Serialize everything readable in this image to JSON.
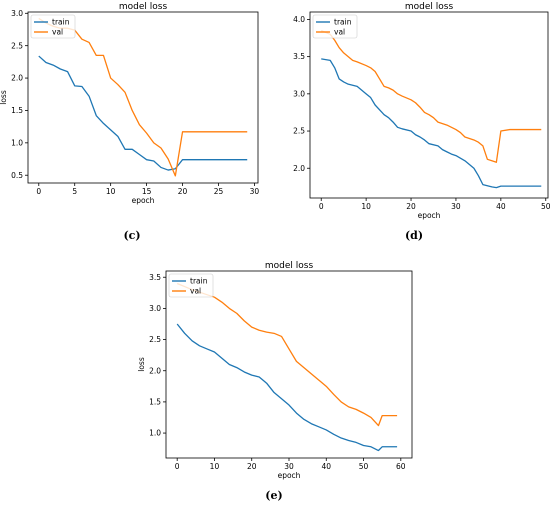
{
  "colors": {
    "train": "#1f77b4",
    "val": "#ff7f0e"
  },
  "chart_data": [
    {
      "type": "line",
      "title": "model loss",
      "xlabel": "epoch",
      "ylabel": "loss",
      "caption": "(c)",
      "xlim": [
        -1.5,
        30.5
      ],
      "ylim": [
        0.38,
        3.02
      ],
      "xticks": [
        0,
        5,
        10,
        15,
        20,
        25,
        30
      ],
      "yticks": [
        0.5,
        1.0,
        1.5,
        2.0,
        2.5,
        3.0
      ],
      "ytick_labels": [
        "0.5",
        "1.0",
        "1.5",
        "2.0",
        "2.5",
        "3.0"
      ],
      "legend": "upper-left",
      "series": [
        {
          "name": "train",
          "color": "#1f77b4",
          "x": [
            0,
            1,
            2,
            3,
            4,
            5,
            6,
            7,
            8,
            9,
            10,
            11,
            12,
            13,
            14,
            15,
            16,
            17,
            18,
            19,
            20,
            21,
            22,
            23,
            24,
            25,
            26,
            27,
            28,
            29
          ],
          "values": [
            2.34,
            2.24,
            2.2,
            2.14,
            2.1,
            1.88,
            1.87,
            1.72,
            1.42,
            1.3,
            1.2,
            1.1,
            0.9,
            0.9,
            0.82,
            0.74,
            0.72,
            0.62,
            0.58,
            0.6,
            0.74,
            0.74,
            0.74,
            0.74,
            0.74,
            0.74,
            0.74,
            0.74,
            0.74,
            0.74
          ]
        },
        {
          "name": "val",
          "color": "#ff7f0e",
          "x": [
            0,
            1,
            2,
            3,
            4,
            5,
            6,
            7,
            8,
            9,
            10,
            11,
            12,
            13,
            14,
            15,
            16,
            17,
            18,
            19,
            20,
            21,
            22,
            23,
            24,
            25,
            26,
            27,
            28,
            29
          ],
          "values": [
            2.92,
            2.85,
            2.8,
            2.77,
            2.77,
            2.74,
            2.6,
            2.55,
            2.35,
            2.35,
            2.0,
            1.9,
            1.78,
            1.5,
            1.28,
            1.15,
            1.0,
            0.92,
            0.75,
            0.49,
            1.17,
            1.17,
            1.17,
            1.17,
            1.17,
            1.17,
            1.17,
            1.17,
            1.17,
            1.17
          ]
        }
      ]
    },
    {
      "type": "line",
      "title": "model loss",
      "xlabel": "epoch",
      "ylabel": "",
      "caption": "(d)",
      "xlim": [
        -2.5,
        50.5
      ],
      "ylim": [
        1.6,
        4.1
      ],
      "xticks": [
        0,
        10,
        20,
        30,
        40,
        50
      ],
      "yticks": [
        2.0,
        2.5,
        3.0,
        3.5,
        4.0
      ],
      "ytick_labels": [
        "2.0",
        "2.5",
        "3.0",
        "3.5",
        "4.0"
      ],
      "legend": "upper-left",
      "series": [
        {
          "name": "train",
          "color": "#1f77b4",
          "x": [
            0,
            2,
            3,
            4,
            5,
            6,
            8,
            9,
            10,
            11,
            12,
            14,
            15,
            16,
            17,
            18,
            20,
            21,
            22,
            23,
            24,
            26,
            27,
            28,
            29,
            30,
            32,
            34,
            35,
            36,
            38,
            39,
            40,
            42,
            44,
            46,
            48,
            49
          ],
          "values": [
            3.47,
            3.45,
            3.35,
            3.2,
            3.16,
            3.13,
            3.1,
            3.05,
            3.0,
            2.95,
            2.85,
            2.72,
            2.68,
            2.62,
            2.55,
            2.53,
            2.5,
            2.45,
            2.42,
            2.38,
            2.33,
            2.3,
            2.25,
            2.22,
            2.19,
            2.17,
            2.1,
            2.0,
            1.9,
            1.78,
            1.75,
            1.74,
            1.76,
            1.76,
            1.76,
            1.76,
            1.76,
            1.76
          ]
        },
        {
          "name": "val",
          "color": "#ff7f0e",
          "x": [
            0,
            2,
            3,
            4,
            5,
            6,
            7,
            8,
            10,
            11,
            12,
            13,
            14,
            15,
            16,
            17,
            18,
            20,
            21,
            22,
            23,
            24,
            25,
            26,
            28,
            29,
            30,
            31,
            32,
            33,
            34,
            35,
            36,
            37,
            38,
            39,
            40,
            42,
            44,
            46,
            48,
            49
          ],
          "values": [
            3.85,
            3.8,
            3.72,
            3.62,
            3.55,
            3.5,
            3.45,
            3.43,
            3.38,
            3.35,
            3.3,
            3.2,
            3.1,
            3.08,
            3.05,
            3.0,
            2.97,
            2.92,
            2.88,
            2.82,
            2.75,
            2.72,
            2.68,
            2.62,
            2.58,
            2.55,
            2.52,
            2.48,
            2.42,
            2.4,
            2.38,
            2.35,
            2.3,
            2.12,
            2.1,
            2.08,
            2.5,
            2.52,
            2.52,
            2.52,
            2.52,
            2.52
          ]
        }
      ]
    },
    {
      "type": "line",
      "title": "model loss",
      "xlabel": "epoch",
      "ylabel": "loss",
      "caption": "(e)",
      "xlim": [
        -3,
        63
      ],
      "ylim": [
        0.6,
        3.6
      ],
      "xticks": [
        0,
        10,
        20,
        30,
        40,
        50,
        60
      ],
      "yticks": [
        1.0,
        1.5,
        2.0,
        2.5,
        3.0,
        3.5
      ],
      "ytick_labels": [
        "1.0",
        "1.5",
        "2.0",
        "2.5",
        "3.0",
        "3.5"
      ],
      "legend": "upper-left",
      "series": [
        {
          "name": "train",
          "color": "#1f77b4",
          "x": [
            0,
            2,
            4,
            6,
            8,
            10,
            12,
            14,
            16,
            18,
            20,
            22,
            24,
            26,
            28,
            30,
            32,
            34,
            36,
            38,
            40,
            42,
            44,
            46,
            48,
            50,
            52,
            54,
            55,
            57,
            59
          ],
          "values": [
            2.75,
            2.6,
            2.48,
            2.4,
            2.35,
            2.3,
            2.2,
            2.1,
            2.05,
            1.98,
            1.93,
            1.9,
            1.8,
            1.65,
            1.55,
            1.45,
            1.32,
            1.22,
            1.15,
            1.1,
            1.05,
            0.98,
            0.92,
            0.88,
            0.85,
            0.8,
            0.78,
            0.72,
            0.78,
            0.78,
            0.78
          ]
        },
        {
          "name": "val",
          "color": "#ff7f0e",
          "x": [
            0,
            2,
            4,
            6,
            8,
            10,
            12,
            14,
            16,
            18,
            20,
            22,
            24,
            26,
            28,
            30,
            32,
            34,
            36,
            38,
            40,
            42,
            44,
            46,
            48,
            50,
            52,
            54,
            55,
            57,
            59
          ],
          "values": [
            3.4,
            3.35,
            3.3,
            3.26,
            3.22,
            3.18,
            3.1,
            3.0,
            2.92,
            2.8,
            2.7,
            2.65,
            2.62,
            2.6,
            2.55,
            2.35,
            2.15,
            2.05,
            1.95,
            1.85,
            1.75,
            1.62,
            1.5,
            1.42,
            1.38,
            1.32,
            1.25,
            1.12,
            1.28,
            1.28,
            1.28
          ]
        }
      ]
    }
  ]
}
